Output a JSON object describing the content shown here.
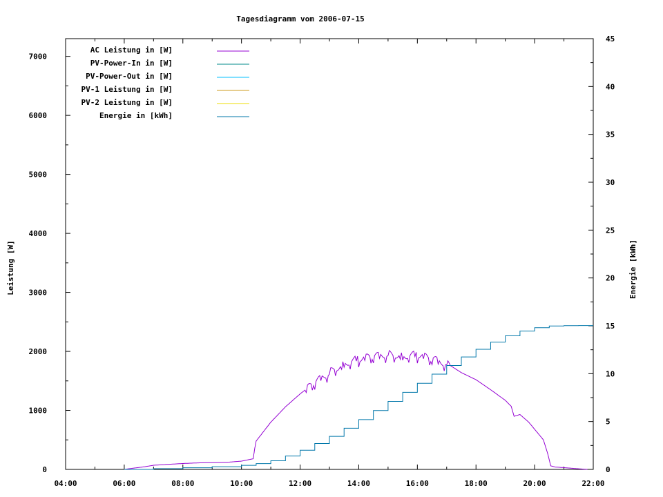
{
  "chart_data": {
    "type": "line",
    "title": "Tagesdiagramm vom 2006-07-15",
    "ylabel": "Leistung [W]",
    "y2label": "Energie [kWh]",
    "xlim": [
      4,
      22
    ],
    "ylim": [
      0,
      7300
    ],
    "y2lim": [
      0,
      45
    ],
    "x_ticks": [
      "04:00",
      "06:00",
      "08:00",
      "10:00",
      "12:00",
      "14:00",
      "16:00",
      "18:00",
      "20:00",
      "22:00"
    ],
    "y_ticks": [
      "0",
      "1000",
      "2000",
      "3000",
      "4000",
      "5000",
      "6000",
      "7000"
    ],
    "y2_ticks": [
      "0",
      "5",
      "10",
      "15",
      "20",
      "25",
      "30",
      "35",
      "40",
      "45"
    ],
    "legend_position": "top-left",
    "grid": false,
    "series": [
      {
        "name": "AC Leistung in [W]",
        "color": "#9400d3",
        "axis": "left",
        "x": [
          6.0,
          6.3,
          6.7,
          7.0,
          7.5,
          8.0,
          8.5,
          9.0,
          9.5,
          10.0,
          10.2,
          10.4,
          10.45,
          10.5,
          11.0,
          11.5,
          12.0,
          12.5,
          13.0,
          13.5,
          14.0,
          14.5,
          15.0,
          15.5,
          16.0,
          16.5,
          17.0,
          17.5,
          18.0,
          18.5,
          19.0,
          19.2,
          19.3,
          19.5,
          19.8,
          20.0,
          20.3,
          20.45,
          20.55,
          20.7,
          21.0,
          21.5,
          21.8
        ],
        "y": [
          0,
          20,
          45,
          70,
          85,
          100,
          110,
          115,
          120,
          140,
          160,
          180,
          350,
          480,
          800,
          1060,
          1280,
          1470,
          1650,
          1800,
          1880,
          1910,
          1960,
          1930,
          1950,
          1870,
          1800,
          1640,
          1520,
          1350,
          1170,
          1070,
          900,
          930,
          800,
          680,
          500,
          260,
          60,
          40,
          30,
          10,
          0
        ]
      },
      {
        "name": "PV-Power-In in [W]",
        "color": "#008b8b",
        "axis": "left",
        "x": [],
        "y": []
      },
      {
        "name": "PV-Power-Out in [W]",
        "color": "#00bfff",
        "axis": "left",
        "x": [],
        "y": []
      },
      {
        "name": "PV-1 Leistung in [W]",
        "color": "#cd9b1d",
        "axis": "left",
        "x": [],
        "y": []
      },
      {
        "name": "PV-2 Leistung in [W]",
        "color": "#eedd00",
        "axis": "left",
        "x": [],
        "y": []
      },
      {
        "name": "Energie in [kWh]",
        "color": "#0077aa",
        "axis": "right",
        "x": [
          6.0,
          7.0,
          8.0,
          9.0,
          10.0,
          10.5,
          11.0,
          11.5,
          12.0,
          12.5,
          13.0,
          13.5,
          14.0,
          14.5,
          15.0,
          15.5,
          16.0,
          16.5,
          17.0,
          17.5,
          18.0,
          18.5,
          19.0,
          19.5,
          20.0,
          20.5,
          21.0,
          21.5,
          22.0
        ],
        "y": [
          0,
          0.07,
          0.17,
          0.28,
          0.42,
          0.6,
          0.9,
          1.4,
          2.0,
          2.7,
          3.45,
          4.3,
          5.2,
          6.15,
          7.1,
          8.05,
          9.0,
          9.95,
          10.85,
          11.75,
          12.55,
          13.3,
          13.95,
          14.45,
          14.8,
          14.98,
          15.02,
          15.03,
          15.03
        ]
      }
    ]
  }
}
